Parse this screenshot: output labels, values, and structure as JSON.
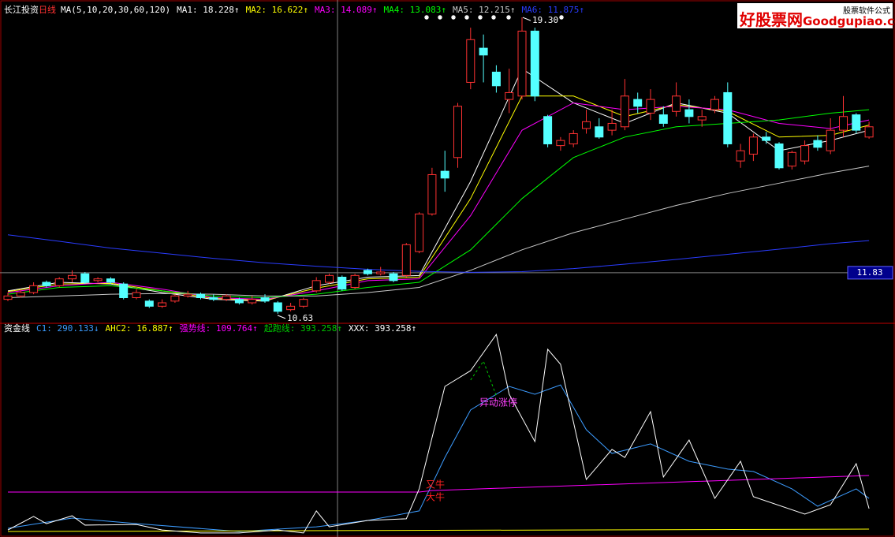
{
  "chart_data": [
    {
      "type": "candlestick",
      "title": "长江投资",
      "subtitle": "日线",
      "ma_label": "MA(5,10,20,30,60,120)",
      "ylim": [
        10.35,
        19.81
      ],
      "up_color": "#ff3232",
      "down_color": "#54ffff",
      "open": [
        11.05,
        11.15,
        11.25,
        11.55,
        11.45,
        11.65,
        11.8,
        11.6,
        11.65,
        11.5,
        11.1,
        11.0,
        10.85,
        11.0,
        11.15,
        11.2,
        11.1,
        11.05,
        11.05,
        10.95,
        11.1,
        10.95,
        10.75,
        10.85,
        11.3,
        11.55,
        11.7,
        11.4,
        11.9,
        11.8,
        11.8,
        11.75,
        12.45,
        13.55,
        14.8,
        15.2,
        17.4,
        18.4,
        17.7,
        16.9,
        17.0,
        18.9,
        16.4,
        15.55,
        15.6,
        16.05,
        16.1,
        16.0,
        16.1,
        16.9,
        16.5,
        16.45,
        16.55,
        16.6,
        16.3,
        16.6,
        17.1,
        15.1,
        15.3,
        15.8,
        15.6,
        14.95,
        15.1,
        15.7,
        15.4,
        16.0,
        16.45,
        15.8
      ],
      "close": [
        11.15,
        11.25,
        11.45,
        11.45,
        11.65,
        11.75,
        11.55,
        11.65,
        11.55,
        11.1,
        11.25,
        10.85,
        10.95,
        11.15,
        11.2,
        11.1,
        11.05,
        11.15,
        10.95,
        11.05,
        11.0,
        10.7,
        10.85,
        11.05,
        11.6,
        11.75,
        11.35,
        11.75,
        11.8,
        11.85,
        11.6,
        12.65,
        13.55,
        14.7,
        14.6,
        16.7,
        18.65,
        18.2,
        17.3,
        17.1,
        18.9,
        17.0,
        15.6,
        15.7,
        15.9,
        16.25,
        15.8,
        16.2,
        17.0,
        16.7,
        16.9,
        16.2,
        17.0,
        16.4,
        16.4,
        16.9,
        15.6,
        15.4,
        15.8,
        15.7,
        14.9,
        15.35,
        15.55,
        15.5,
        16.0,
        16.4,
        16.0,
        16.1
      ],
      "high": [
        11.25,
        11.35,
        11.55,
        11.6,
        11.7,
        11.9,
        11.85,
        11.7,
        11.7,
        11.55,
        11.35,
        11.05,
        11.05,
        11.2,
        11.3,
        11.25,
        11.2,
        11.2,
        11.1,
        11.15,
        11.2,
        11.0,
        10.95,
        11.1,
        11.7,
        11.8,
        11.75,
        11.8,
        11.95,
        12.0,
        11.85,
        12.7,
        13.6,
        14.9,
        15.4,
        16.8,
        19.0,
        18.8,
        17.9,
        17.8,
        19.3,
        19.0,
        16.45,
        15.8,
        16.0,
        16.6,
        16.35,
        16.6,
        17.5,
        17.1,
        17.2,
        16.7,
        17.4,
        16.9,
        16.6,
        17.0,
        17.4,
        15.6,
        15.9,
        15.95,
        15.65,
        15.4,
        15.7,
        15.85,
        16.35,
        17.0,
        16.5,
        16.25
      ],
      "low": [
        11.0,
        11.1,
        11.2,
        11.4,
        11.4,
        11.55,
        11.5,
        11.55,
        11.5,
        11.05,
        11.05,
        10.8,
        10.8,
        10.95,
        11.1,
        11.05,
        11.0,
        11.0,
        10.9,
        10.9,
        10.95,
        10.63,
        10.7,
        10.8,
        11.25,
        11.5,
        11.3,
        11.35,
        11.75,
        11.75,
        11.55,
        11.7,
        12.4,
        13.5,
        14.2,
        14.9,
        17.2,
        17.4,
        17.1,
        16.5,
        16.9,
        16.85,
        15.5,
        15.4,
        15.5,
        15.9,
        15.75,
        15.85,
        16.0,
        16.5,
        16.3,
        16.1,
        16.4,
        16.2,
        16.1,
        16.5,
        15.5,
        14.9,
        15.1,
        15.6,
        14.85,
        14.85,
        15.0,
        15.4,
        15.3,
        15.8,
        15.9,
        15.75
      ],
      "low_label": 10.63,
      "high_label": {
        "value": 19.3,
        "label": "19.30"
      },
      "price_line": 11.83,
      "series": [
        {
          "name": "MA1: 18.228↑",
          "color": "#ffffff",
          "x": [
            0,
            4,
            8,
            12,
            16,
            20,
            24,
            28,
            32,
            36,
            40,
            44,
            48,
            52,
            56,
            60,
            64,
            67
          ],
          "values": [
            11.3,
            11.55,
            11.5,
            11.25,
            11.05,
            11.0,
            11.45,
            11.7,
            11.75,
            14.5,
            17.8,
            16.8,
            16.2,
            16.8,
            16.5,
            15.4,
            15.7,
            16.0
          ]
        },
        {
          "name": "MA2: 16.622↑",
          "color": "#ffff00",
          "x": [
            0,
            4,
            8,
            12,
            16,
            20,
            24,
            28,
            32,
            36,
            40,
            44,
            48,
            52,
            56,
            60,
            64,
            67
          ],
          "values": [
            11.28,
            11.5,
            11.52,
            11.3,
            11.08,
            11.02,
            11.38,
            11.65,
            11.7,
            14.0,
            17.0,
            17.0,
            16.4,
            16.75,
            16.55,
            15.8,
            15.85,
            16.15
          ]
        },
        {
          "name": "MA3: 14.089↑",
          "color": "#ff00ff",
          "x": [
            0,
            4,
            8,
            12,
            16,
            20,
            24,
            28,
            32,
            36,
            40,
            44,
            48,
            52,
            56,
            60,
            64,
            67
          ],
          "values": [
            11.25,
            11.45,
            11.55,
            11.35,
            11.1,
            11.05,
            11.3,
            11.6,
            11.65,
            13.5,
            16.0,
            16.8,
            16.6,
            16.7,
            16.6,
            16.2,
            16.05,
            16.3
          ]
        },
        {
          "name": "MA4: 13.083↑",
          "color": "#00ff00",
          "x": [
            0,
            4,
            8,
            12,
            16,
            20,
            24,
            28,
            32,
            36,
            40,
            44,
            48,
            52,
            56,
            60,
            64,
            67
          ],
          "values": [
            11.2,
            11.4,
            11.45,
            11.3,
            11.15,
            11.1,
            11.2,
            11.4,
            11.55,
            12.5,
            14.0,
            15.2,
            15.8,
            16.1,
            16.2,
            16.3,
            16.5,
            16.6
          ]
        },
        {
          "name": "MA5: 12.215↑",
          "color": "#c8c8c8",
          "x": [
            0,
            4,
            8,
            12,
            16,
            20,
            24,
            28,
            32,
            36,
            40,
            44,
            48,
            52,
            56,
            60,
            64,
            67
          ],
          "values": [
            11.1,
            11.15,
            11.2,
            11.22,
            11.2,
            11.15,
            11.15,
            11.25,
            11.4,
            11.9,
            12.5,
            13.0,
            13.4,
            13.8,
            14.15,
            14.45,
            14.75,
            14.95
          ]
        },
        {
          "name": "MA6: 11.875↑",
          "color": "#2a3cff",
          "x": [
            0,
            4,
            8,
            12,
            16,
            20,
            24,
            28,
            32,
            36,
            40,
            44,
            48,
            52,
            56,
            60,
            64,
            67
          ],
          "values": [
            12.94,
            12.75,
            12.55,
            12.4,
            12.25,
            12.12,
            12.02,
            11.93,
            11.87,
            11.84,
            11.86,
            11.95,
            12.08,
            12.22,
            12.37,
            12.52,
            12.68,
            12.77
          ]
        }
      ]
    },
    {
      "type": "line",
      "title": "资金线",
      "ylim": [
        0,
        100
      ],
      "series": [
        {
          "name": "C1: 290.133↓",
          "color": "#3c9cff",
          "x": [
            0,
            5,
            10,
            18,
            24,
            28,
            32,
            34,
            36,
            39,
            41,
            43,
            45,
            47,
            50,
            53,
            56,
            58,
            61,
            63,
            66,
            67
          ],
          "values": [
            4.1,
            8.9,
            6.3,
            2.6,
            4.8,
            7.8,
            12.3,
            37.5,
            59.9,
            71.0,
            67.3,
            71.7,
            50.6,
            39.4,
            43.9,
            35.7,
            32.0,
            30.9,
            22.7,
            14.5,
            22.7,
            18.2
          ]
        },
        {
          "name": "AHC2: 16.887↑",
          "color": "#ffff00",
          "x": [
            0,
            67
          ],
          "values": [
            2.6,
            3.7
          ]
        },
        {
          "name": "强势线: 109.764↑",
          "color": "#ff00ff",
          "x": [
            0,
            32,
            33,
            67
          ],
          "values": [
            21.2,
            21.2,
            21.9,
            29.0
          ]
        },
        {
          "name": "起跑线: 393.258↑",
          "color": "#00c800",
          "dash": true,
          "x": [
            36,
            37,
            38
          ],
          "values": [
            74.0,
            82.9,
            66.5
          ]
        },
        {
          "name": "XXX: 393.258↑",
          "color": "#ffffff",
          "x": [
            0,
            2,
            3,
            5,
            6,
            10,
            12,
            15,
            18,
            21,
            23,
            24,
            25,
            28,
            31,
            32,
            34,
            36,
            38,
            39,
            41,
            42,
            43,
            45,
            47,
            48,
            50,
            51,
            53,
            55,
            57,
            58,
            62,
            64,
            66,
            67
          ],
          "values": [
            3.3,
            9.7,
            6.3,
            10.0,
            5.6,
            5.9,
            3.3,
            1.9,
            1.9,
            3.3,
            1.9,
            12.3,
            4.8,
            7.8,
            8.6,
            22.7,
            71.0,
            78.4,
            95.5,
            67.3,
            45.0,
            88.5,
            81.4,
            27.1,
            41.3,
            37.5,
            59.1,
            28.3,
            45.7,
            18.2,
            35.7,
            19.0,
            10.8,
            15.2,
            34.6,
            13.4
          ]
        }
      ],
      "annotations": [
        "异动涨停",
        "又牛",
        "大牛"
      ]
    }
  ],
  "watermark": {
    "title": "好股票网",
    "site": "Goodgupiao.com",
    "tag": "股票软件公式"
  }
}
